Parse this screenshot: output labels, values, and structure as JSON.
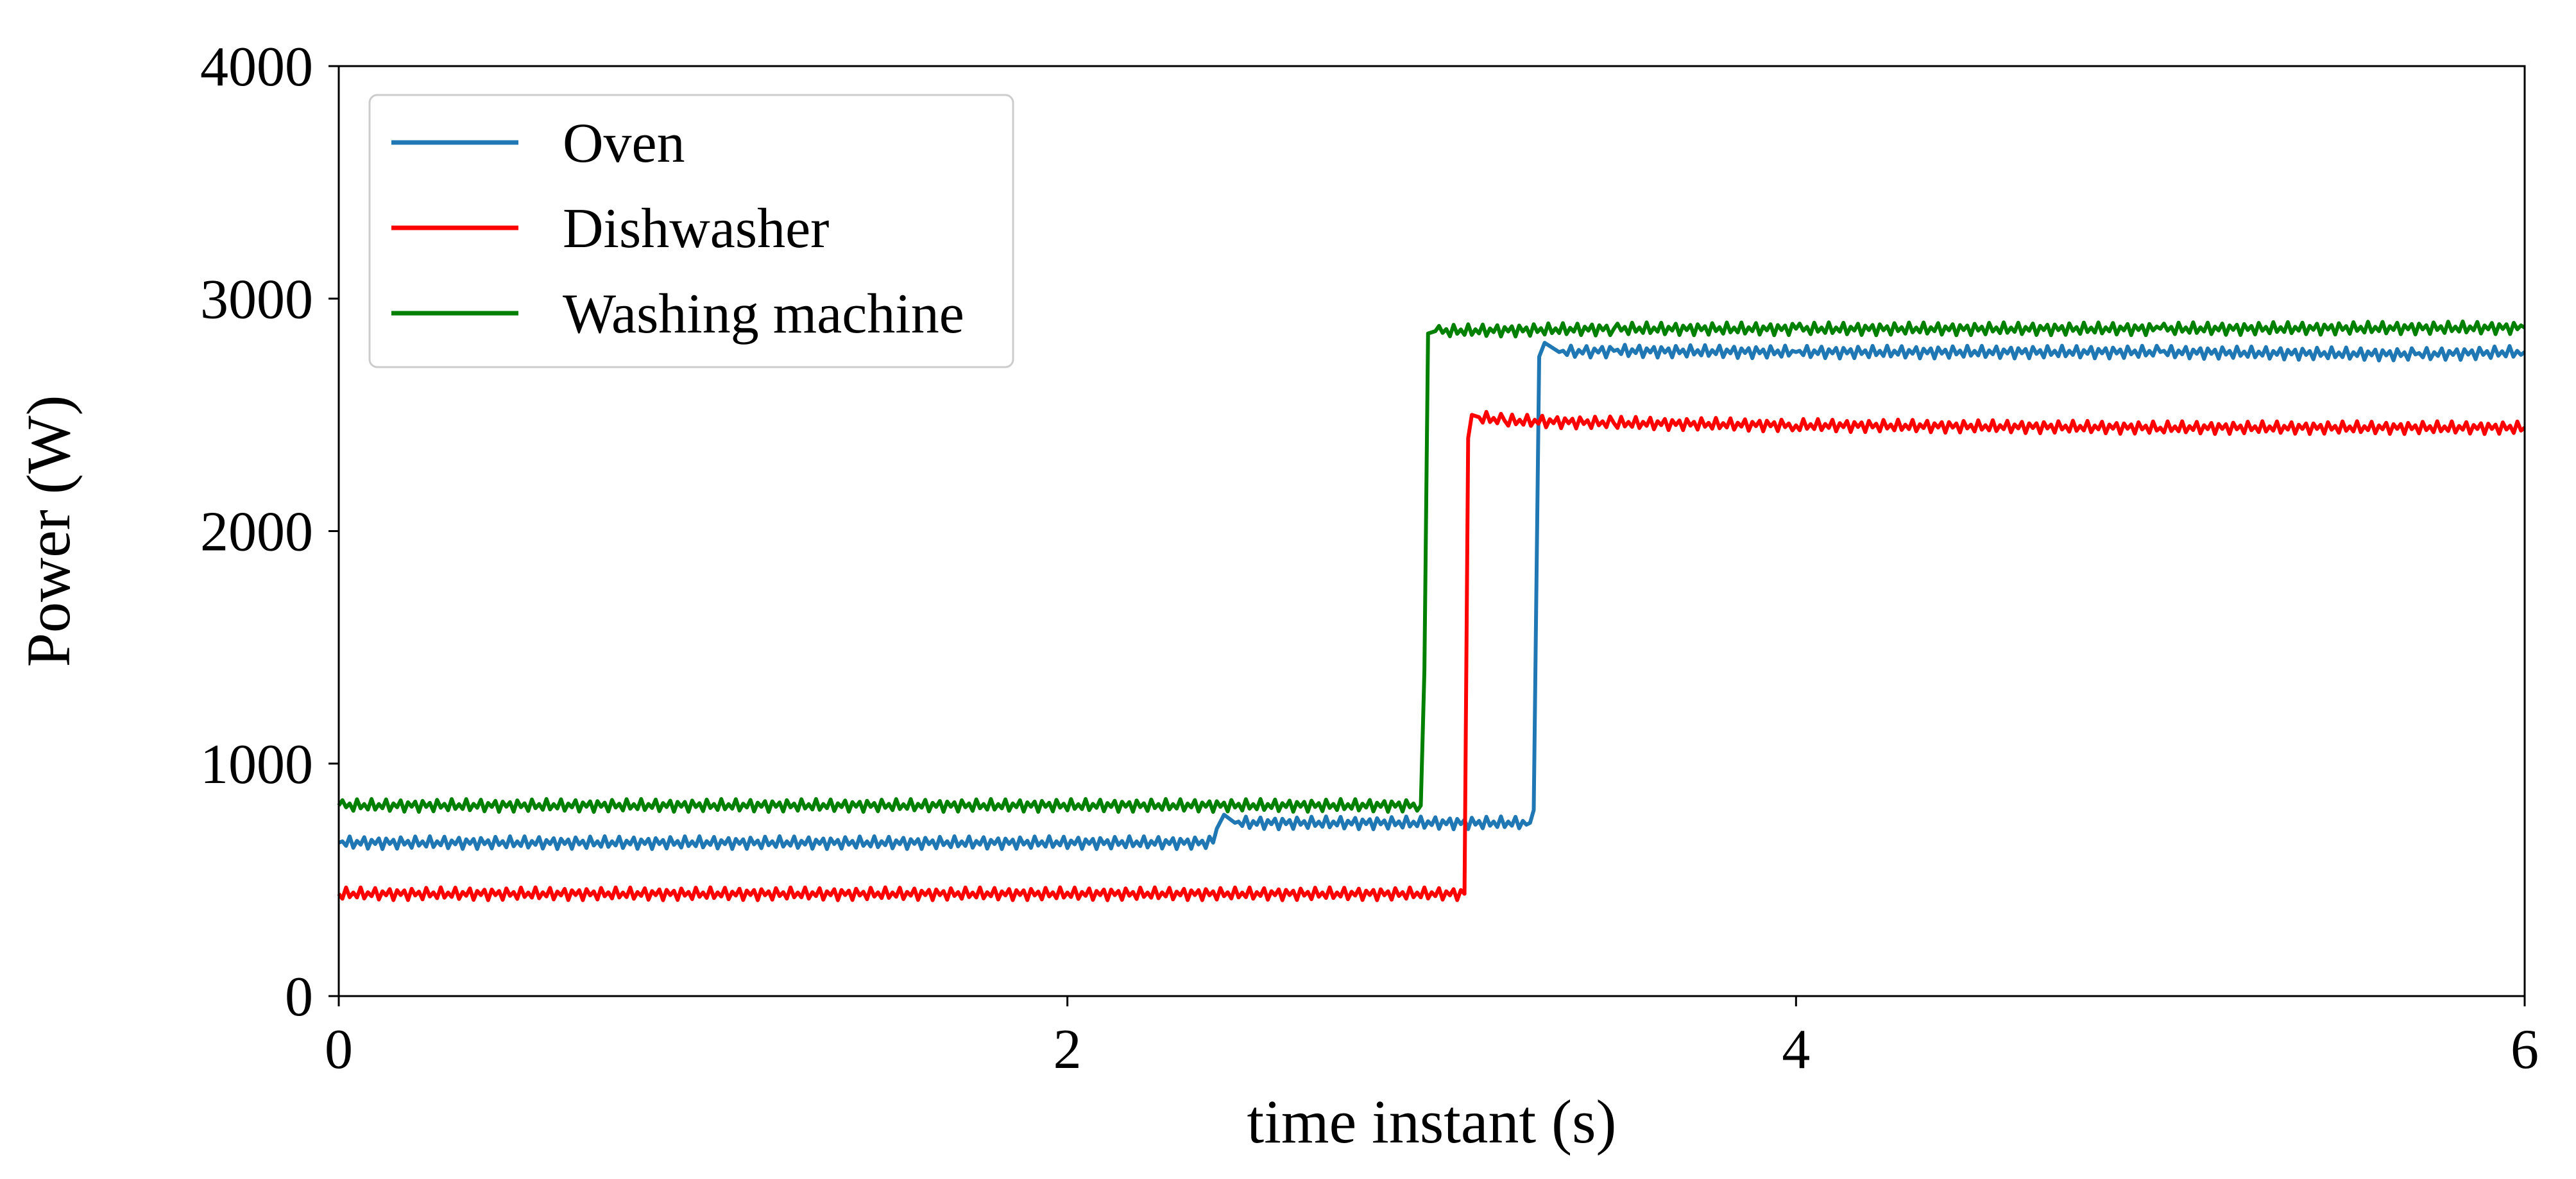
{
  "chart_data": {
    "type": "line",
    "title": "",
    "xlabel": "time instant (s)",
    "ylabel": "Power (W)",
    "xlim": [
      0,
      6
    ],
    "ylim": [
      0,
      4000
    ],
    "xticks": [
      0,
      2,
      4,
      6
    ],
    "yticks": [
      0,
      1000,
      2000,
      3000,
      4000
    ],
    "x_tick_labels": [
      "0",
      "2",
      "4",
      "6"
    ],
    "y_tick_labels": [
      "0",
      "1000",
      "2000",
      "3000",
      "4000"
    ],
    "grid": false,
    "legend_position": "top-left",
    "series": [
      {
        "name": "Oven",
        "color": "#1f77b4",
        "x": [
          0,
          2.4,
          2.41,
          2.43,
          2.46,
          3.27,
          3.28,
          3.295,
          3.31,
          3.35,
          3.5,
          4.0,
          5.0,
          5.7,
          6.0
        ],
        "y": [
          660,
          660,
          720,
          780,
          745,
          745,
          800,
          2750,
          2810,
          2770,
          2775,
          2770,
          2770,
          2760,
          2770
        ]
      },
      {
        "name": "Dishwasher",
        "color": "#ff0000",
        "x": [
          0,
          3.09,
          3.1,
          3.11,
          3.13,
          3.2,
          3.5,
          4.0,
          5.0,
          6.0
        ],
        "y": [
          440,
          440,
          2400,
          2500,
          2490,
          2475,
          2465,
          2455,
          2445,
          2445
        ]
      },
      {
        "name": "Washing machine",
        "color": "#008000",
        "x": [
          0,
          2.97,
          2.98,
          2.99,
          3.01,
          3.5,
          4.0,
          5.0,
          6.0
        ],
        "y": [
          820,
          820,
          1400,
          2850,
          2860,
          2870,
          2870,
          2870,
          2875
        ]
      }
    ]
  }
}
